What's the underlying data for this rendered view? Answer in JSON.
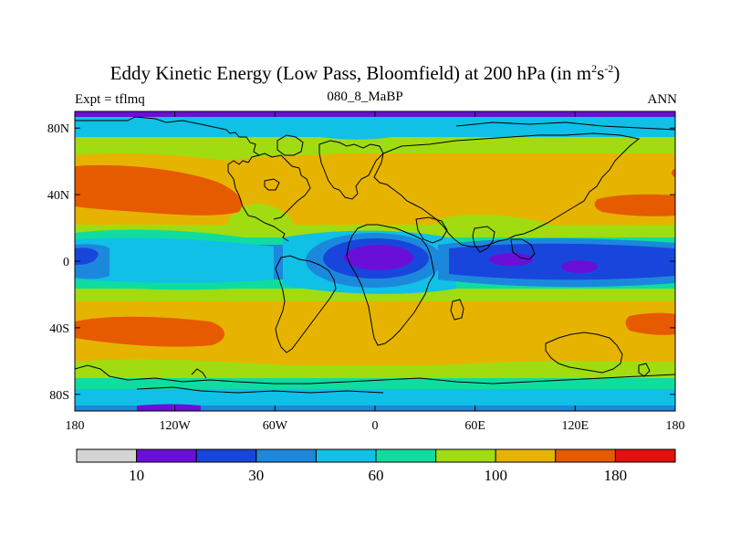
{
  "title": {
    "main": "Eddy Kinetic Energy (Low Pass, Bloomfield) at 200 hPa (in m",
    "sup1": "2",
    "mid": "s",
    "sup2": "-2",
    "end": ")"
  },
  "subtitle": {
    "left": "Expt = tflmq",
    "center": "080_8_MaBP",
    "right": "ANN"
  },
  "chart_data": {
    "type": "heatmap",
    "projection": "cylindrical-equidistant",
    "variable": "Eddy Kinetic Energy (Low Pass, Bloomfield)",
    "level": "200 hPa",
    "units": "m2 s-2",
    "xlim": [
      -180,
      180
    ],
    "ylim": [
      -90,
      90
    ],
    "x_ticks": [
      {
        "value": -180,
        "label": "180"
      },
      {
        "value": -120,
        "label": "120W"
      },
      {
        "value": -60,
        "label": "60W"
      },
      {
        "value": 0,
        "label": "0"
      },
      {
        "value": 60,
        "label": "60E"
      },
      {
        "value": 120,
        "label": "120E"
      },
      {
        "value": 180,
        "label": "180"
      }
    ],
    "y_ticks": [
      {
        "value": 80,
        "label": "80N"
      },
      {
        "value": 40,
        "label": "40N"
      },
      {
        "value": 0,
        "label": "0"
      },
      {
        "value": -40,
        "label": "40S"
      },
      {
        "value": -80,
        "label": "80S"
      }
    ],
    "colorbar": {
      "colors": [
        "#d4d4d4",
        "#6a0fd8",
        "#1846dc",
        "#1c88dc",
        "#10c0e6",
        "#10dca0",
        "#a0dc10",
        "#e6b400",
        "#e65a00",
        "#e61010"
      ],
      "labels": [
        {
          "after_box": 1,
          "text": "10"
        },
        {
          "after_box": 3,
          "text": "30"
        },
        {
          "after_box": 5,
          "text": "60"
        },
        {
          "after_box": 7,
          "text": "100"
        },
        {
          "after_box": 9,
          "text": "180"
        }
      ]
    }
  }
}
